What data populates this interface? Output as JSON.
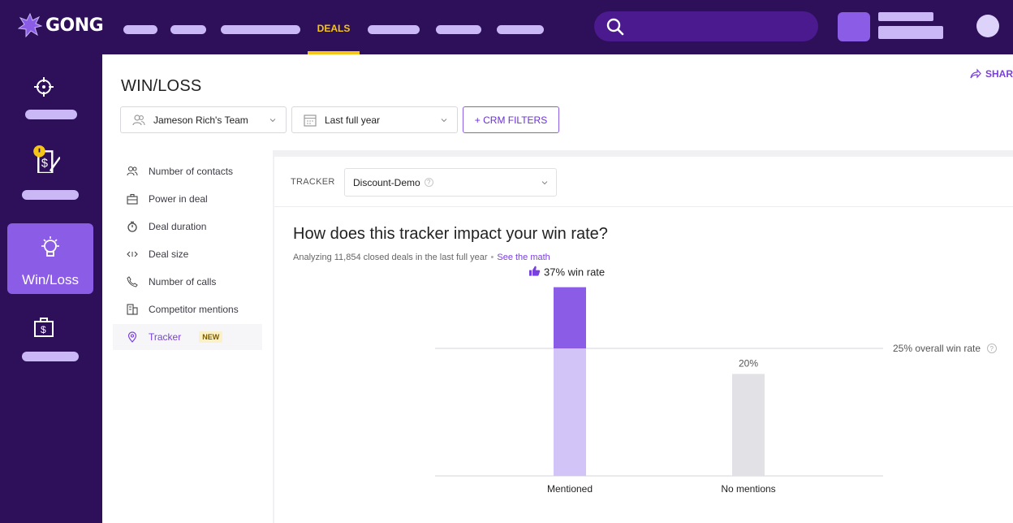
{
  "app": {
    "logo_text": "GONG"
  },
  "topnav": {
    "active_item": "DEALS"
  },
  "rail": {
    "active_label": "Win/Loss"
  },
  "header": {
    "title": "WIN/LOSS",
    "share_label": "SHAR",
    "team_filter": "Jameson Rich's Team",
    "date_filter": "Last full year",
    "crm_filters_label": "+ CRM FILTERS"
  },
  "metrics": {
    "items": [
      {
        "label": "Number of contacts",
        "icon": "contacts-icon"
      },
      {
        "label": "Power in deal",
        "icon": "briefcase-icon"
      },
      {
        "label": "Deal duration",
        "icon": "stopwatch-icon"
      },
      {
        "label": "Deal size",
        "icon": "arrows-icon"
      },
      {
        "label": "Number of calls",
        "icon": "phone-icon"
      },
      {
        "label": "Competitor mentions",
        "icon": "building-icon"
      },
      {
        "label": "Tracker",
        "icon": "location-pin-icon",
        "badge": "NEW",
        "active": true
      }
    ]
  },
  "tracker": {
    "label": "TRACKER",
    "value": "Discount-Demo"
  },
  "analysis": {
    "title": "How does this tracker impact your win rate?",
    "subtitle": "Analyzing 11,854 closed deals in the last full year",
    "link": "See the math"
  },
  "chart_data": {
    "type": "bar",
    "categories": [
      "Mentioned",
      "No mentions"
    ],
    "values": [
      37,
      20
    ],
    "value_labels": [
      "37% win rate",
      "20%"
    ],
    "reference_line": {
      "value": 25,
      "label": "25% overall win rate"
    },
    "ylim": [
      0,
      50
    ],
    "colors": {
      "mentioned_top": "#8b5ce6",
      "mentioned_base": "#d3c4f7",
      "no_mentions": "#e2e2e6",
      "accent": "#7a3fe0"
    },
    "grid": false
  }
}
